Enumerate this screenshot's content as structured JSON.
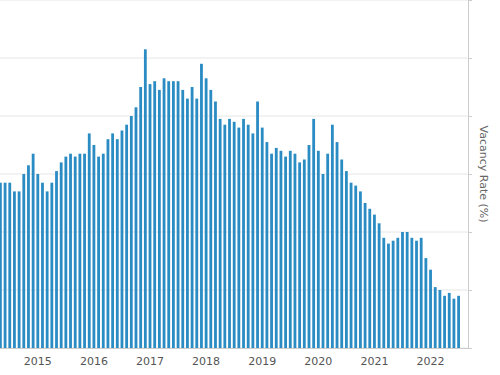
{
  "chart_data": {
    "type": "bar",
    "y_label": "Vacancy Rate (%)",
    "categories": [
      null,
      null,
      null,
      null,
      null,
      null,
      null,
      null,
      "2015",
      null,
      null,
      null,
      null,
      null,
      null,
      null,
      null,
      null,
      null,
      null,
      "2016",
      null,
      null,
      null,
      null,
      null,
      null,
      null,
      null,
      null,
      null,
      null,
      "2017",
      null,
      null,
      null,
      null,
      null,
      null,
      null,
      null,
      null,
      null,
      null,
      "2018",
      null,
      null,
      null,
      null,
      null,
      null,
      null,
      null,
      null,
      null,
      null,
      "2019",
      null,
      null,
      null,
      null,
      null,
      null,
      null,
      null,
      null,
      null,
      null,
      "2020",
      null,
      null,
      null,
      null,
      null,
      null,
      null,
      null,
      null,
      null,
      null,
      "2021",
      null,
      null,
      null,
      null,
      null,
      null,
      null,
      null,
      null,
      null,
      null,
      "2022",
      null,
      null,
      null,
      null,
      null,
      null
    ],
    "values": [
      5.7,
      5.7,
      5.7,
      5.4,
      5.4,
      6.0,
      6.3,
      6.7,
      6.0,
      5.7,
      5.4,
      5.7,
      6.1,
      6.4,
      6.6,
      6.7,
      6.6,
      6.7,
      6.7,
      7.4,
      7.0,
      6.6,
      6.7,
      7.2,
      7.4,
      7.2,
      7.5,
      7.7,
      8.0,
      8.3,
      9.0,
      10.3,
      9.1,
      9.2,
      8.9,
      9.3,
      9.2,
      9.2,
      9.2,
      8.9,
      8.6,
      9.0,
      8.6,
      9.8,
      9.3,
      8.9,
      8.5,
      7.9,
      7.7,
      7.9,
      7.8,
      7.6,
      7.9,
      7.7,
      7.4,
      8.5,
      7.6,
      7.1,
      6.7,
      6.9,
      6.8,
      6.6,
      6.8,
      6.7,
      6.4,
      6.5,
      7.0,
      7.9,
      6.8,
      6.0,
      6.7,
      7.7,
      7.1,
      6.5,
      6.1,
      5.7,
      5.6,
      5.4,
      5.0,
      4.8,
      4.6,
      4.3,
      3.8,
      3.6,
      3.7,
      3.8,
      4.0,
      4.0,
      3.8,
      3.7,
      3.8,
      3.1,
      2.7,
      2.1,
      2.0,
      1.8,
      1.9,
      1.7,
      1.8
    ],
    "color": "#2b8cc4",
    "ylim": [
      0,
      12
    ],
    "yticks": [
      0,
      2,
      4,
      6,
      8,
      10,
      12
    ],
    "grid": true,
    "tick_labels": "x"
  }
}
